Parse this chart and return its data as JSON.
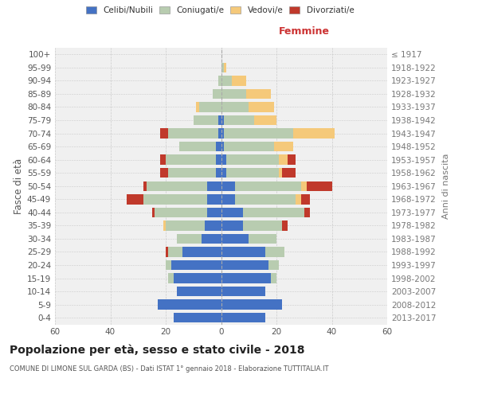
{
  "age_groups": [
    "0-4",
    "5-9",
    "10-14",
    "15-19",
    "20-24",
    "25-29",
    "30-34",
    "35-39",
    "40-44",
    "45-49",
    "50-54",
    "55-59",
    "60-64",
    "65-69",
    "70-74",
    "75-79",
    "80-84",
    "85-89",
    "90-94",
    "95-99",
    "100+"
  ],
  "birth_years": [
    "2013-2017",
    "2008-2012",
    "2003-2007",
    "1998-2002",
    "1993-1997",
    "1988-1992",
    "1983-1987",
    "1978-1982",
    "1973-1977",
    "1968-1972",
    "1963-1967",
    "1958-1962",
    "1953-1957",
    "1948-1952",
    "1943-1947",
    "1938-1942",
    "1933-1937",
    "1928-1932",
    "1923-1927",
    "1918-1922",
    "≤ 1917"
  ],
  "males": {
    "celibi": [
      17,
      23,
      16,
      17,
      18,
      14,
      7,
      6,
      5,
      5,
      5,
      2,
      2,
      2,
      1,
      1,
      0,
      0,
      0,
      0,
      0
    ],
    "coniugati": [
      0,
      0,
      0,
      2,
      2,
      5,
      9,
      14,
      19,
      23,
      22,
      17,
      18,
      13,
      18,
      9,
      8,
      3,
      1,
      0,
      0
    ],
    "vedovi": [
      0,
      0,
      0,
      0,
      0,
      0,
      0,
      1,
      0,
      0,
      0,
      0,
      0,
      0,
      0,
      0,
      1,
      0,
      0,
      0,
      0
    ],
    "divorziati": [
      0,
      0,
      0,
      0,
      0,
      1,
      0,
      0,
      1,
      6,
      1,
      3,
      2,
      0,
      3,
      0,
      0,
      0,
      0,
      0,
      0
    ]
  },
  "females": {
    "nubili": [
      16,
      22,
      16,
      18,
      17,
      16,
      10,
      8,
      8,
      5,
      5,
      2,
      2,
      1,
      1,
      1,
      0,
      0,
      0,
      0,
      0
    ],
    "coniugate": [
      0,
      0,
      0,
      2,
      4,
      7,
      10,
      14,
      22,
      22,
      24,
      19,
      19,
      18,
      25,
      11,
      10,
      9,
      4,
      1,
      0
    ],
    "vedove": [
      0,
      0,
      0,
      0,
      0,
      0,
      0,
      0,
      0,
      2,
      2,
      1,
      3,
      7,
      15,
      8,
      9,
      9,
      5,
      1,
      0
    ],
    "divorziate": [
      0,
      0,
      0,
      0,
      0,
      0,
      0,
      2,
      2,
      3,
      9,
      5,
      3,
      0,
      0,
      0,
      0,
      0,
      0,
      0,
      0
    ]
  },
  "colors": {
    "celibi_nubili": "#4472C4",
    "coniugati": "#B8CCB0",
    "vedovi": "#F5C97A",
    "divorziati": "#C0392B"
  },
  "xlim": 60,
  "title": "Popolazione per età, sesso e stato civile - 2018",
  "subtitle": "COMUNE DI LIMONE SUL GARDA (BS) - Dati ISTAT 1° gennaio 2018 - Elaborazione TUTTITALIA.IT",
  "ylabel_left": "Fasce di età",
  "ylabel_right": "Anni di nascita",
  "femmine_label": "Femmine",
  "legend_labels": [
    "Celibi/Nubili",
    "Coniugati/e",
    "Vedovi/e",
    "Divorziati/e"
  ],
  "bg_color": "#f0f0f0"
}
